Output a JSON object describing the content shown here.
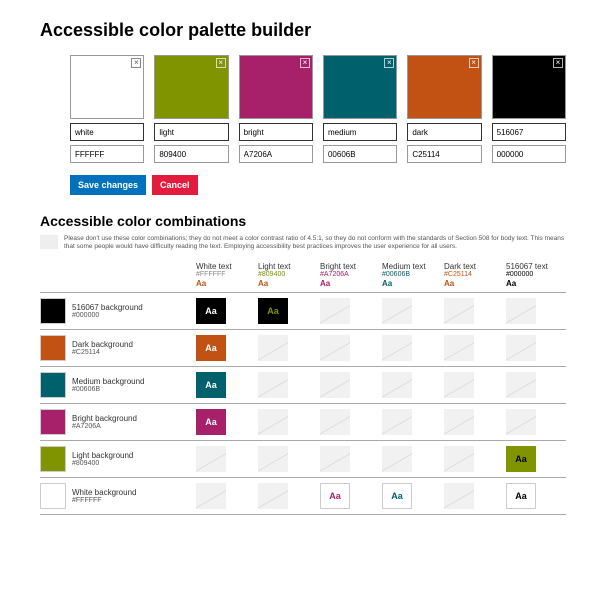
{
  "title": "Accessible color palette builder",
  "palette": [
    {
      "name": "white",
      "hex": "FFFFFF",
      "bg": "#ffffff",
      "light": true
    },
    {
      "name": "light",
      "hex": "809400",
      "bg": "#809400",
      "light": false
    },
    {
      "name": "bright",
      "hex": "A7206A",
      "bg": "#a7206a",
      "light": false
    },
    {
      "name": "medium",
      "hex": "00606B",
      "bg": "#00606b",
      "light": false
    },
    {
      "name": "dark",
      "hex": "C25114",
      "bg": "#c25114",
      "light": false
    },
    {
      "name": "516067",
      "hex": "000000",
      "bg": "#000000",
      "light": false
    }
  ],
  "buttons": {
    "save": "Save changes",
    "cancel": "Cancel"
  },
  "combos_title": "Accessible color combinations",
  "note": "Please don't use these color combinations; they do not meet a color contrast ratio of 4.5:1, so they do not conform with the standards of Section 508 for body text. This means that some people would have difficulty reading the text. Employing accessibility best practices improves the user experience for all users.",
  "columns": [
    {
      "label": "White text",
      "hex": "#FFFFFF",
      "hexcolor": "#888888",
      "aacolor": "#c25114"
    },
    {
      "label": "Light text",
      "hex": "#809400",
      "hexcolor": "#809400",
      "aacolor": "#c25114"
    },
    {
      "label": "Bright text",
      "hex": "#A7206A",
      "hexcolor": "#a7206a",
      "aacolor": "#a7206a"
    },
    {
      "label": "Medium text",
      "hex": "#00606B",
      "hexcolor": "#00606b",
      "aacolor": "#00606b"
    },
    {
      "label": "Dark text",
      "hex": "#C25114",
      "hexcolor": "#c25114",
      "aacolor": "#c25114"
    },
    {
      "label": "516067 text",
      "hex": "#000000",
      "hexcolor": "#000000",
      "aacolor": "#000000"
    }
  ],
  "rows": [
    {
      "label": "516067 background",
      "hex": "#000000",
      "bg": "#000000",
      "cells": [
        {
          "bg": "#000000",
          "fg": "#ffffff"
        },
        {
          "bg": "#000000",
          "fg": "#809400"
        },
        null,
        null,
        null,
        null
      ]
    },
    {
      "label": "Dark background",
      "hex": "#C25114",
      "bg": "#c25114",
      "cells": [
        {
          "bg": "#c25114",
          "fg": "#ffffff"
        },
        null,
        null,
        null,
        null,
        null
      ]
    },
    {
      "label": "Medium background",
      "hex": "#00606B",
      "bg": "#00606b",
      "cells": [
        {
          "bg": "#00606b",
          "fg": "#ffffff"
        },
        null,
        null,
        null,
        null,
        null
      ]
    },
    {
      "label": "Bright background",
      "hex": "#A7206A",
      "bg": "#a7206a",
      "cells": [
        {
          "bg": "#a7206a",
          "fg": "#ffffff"
        },
        null,
        null,
        null,
        null,
        null
      ]
    },
    {
      "label": "Light background",
      "hex": "#809400",
      "bg": "#809400",
      "cells": [
        null,
        null,
        null,
        null,
        null,
        {
          "bg": "#809400",
          "fg": "#000000"
        }
      ]
    },
    {
      "label": "White background",
      "hex": "#FFFFFF",
      "bg": "#ffffff",
      "cells": [
        null,
        null,
        {
          "bg": "#ffffff",
          "fg": "#a7206a",
          "border": true
        },
        {
          "bg": "#ffffff",
          "fg": "#00606b",
          "border": true
        },
        null,
        {
          "bg": "#ffffff",
          "fg": "#000000",
          "border": true
        }
      ]
    }
  ],
  "sample_text": "Aa"
}
